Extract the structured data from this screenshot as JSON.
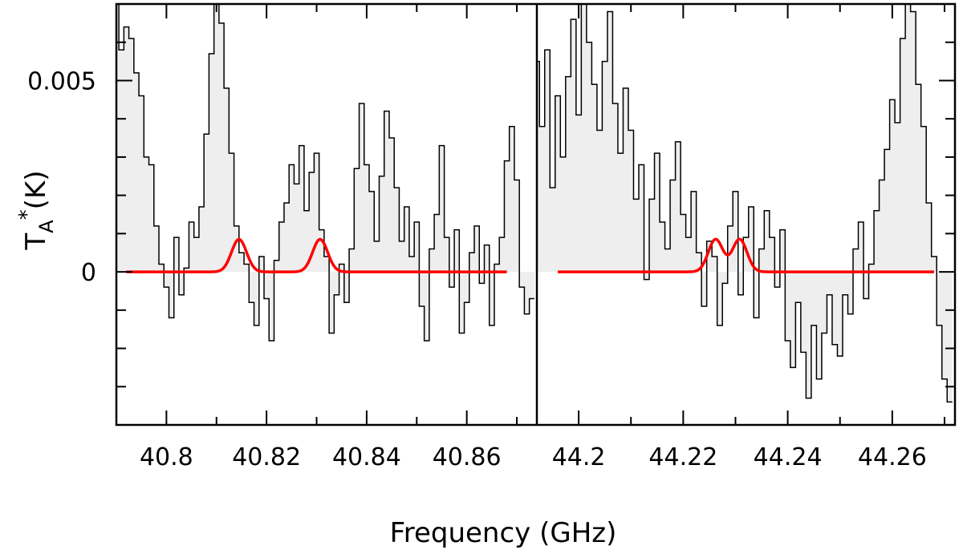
{
  "chart_data": [
    {
      "type": "line",
      "panel": "left",
      "xlabel": "Frequency (GHz)",
      "ylabel": "T_A*(K)",
      "xlim": [
        40.79,
        40.874
      ],
      "ylim": [
        -0.004,
        0.007
      ],
      "x_ticks": [
        40.8,
        40.82,
        40.84,
        40.86
      ],
      "x_tick_labels": [
        "40.8",
        "40.82",
        "40.84",
        "40.86"
      ],
      "y_ticks": [
        0,
        0.005
      ],
      "y_tick_labels": [
        "0",
        "0.005"
      ],
      "series": [
        {
          "style": "histogram-step",
          "color": "#000000",
          "fill": "#eeeeee",
          "x": [
            40.79,
            40.791,
            40.792,
            40.793,
            40.794,
            40.795,
            40.796,
            40.797,
            40.798,
            40.799,
            40.8,
            40.801,
            40.802,
            40.803,
            40.804,
            40.805,
            40.806,
            40.807,
            40.808,
            40.809,
            40.81,
            40.811,
            40.812,
            40.813,
            40.814,
            40.815,
            40.816,
            40.817,
            40.818,
            40.819,
            40.82,
            40.821,
            40.822,
            40.823,
            40.824,
            40.825,
            40.826,
            40.827,
            40.828,
            40.829,
            40.83,
            40.831,
            40.832,
            40.833,
            40.834,
            40.835,
            40.836,
            40.837,
            40.838,
            40.839,
            40.84,
            40.841,
            40.842,
            40.843,
            40.844,
            40.845,
            40.846,
            40.847,
            40.848,
            40.849,
            40.85,
            40.851,
            40.852,
            40.853,
            40.854,
            40.855,
            40.856,
            40.857,
            40.858,
            40.859,
            40.86,
            40.861,
            40.862,
            40.863,
            40.864,
            40.865,
            40.866,
            40.867,
            40.868,
            40.869,
            40.87,
            40.871,
            40.872,
            40.873
          ],
          "y": [
            0.0072,
            0.0058,
            0.0064,
            0.0061,
            0.0052,
            0.0046,
            0.003,
            0.0028,
            0.0012,
            0.0002,
            -0.0004,
            -0.0012,
            0.0009,
            -0.0006,
            0.0001,
            0.0013,
            0.0009,
            0.0017,
            0.0036,
            0.0057,
            0.007,
            0.0065,
            0.0048,
            0.0031,
            0.0012,
            0.0005,
            0.0002,
            -0.0008,
            -0.0014,
            0.0004,
            -0.0007,
            -0.0018,
            0.0003,
            0.0013,
            0.0018,
            0.0028,
            0.0023,
            0.0033,
            0.0016,
            0.0026,
            0.0031,
            0.0011,
            0.0004,
            -0.0016,
            -0.0006,
            0.0002,
            -0.0008,
            0.0006,
            0.0027,
            0.0044,
            0.0028,
            0.0021,
            0.0008,
            0.0025,
            0.0042,
            0.0035,
            0.0022,
            0.0008,
            0.0017,
            0.0004,
            0.0013,
            -0.0009,
            -0.0018,
            0.0006,
            0.0015,
            0.0033,
            0.0009,
            -0.0004,
            0.0011,
            -0.0016,
            -0.0008,
            0.0005,
            0.0012,
            -0.0003,
            0.0007,
            -0.0014,
            0.0002,
            0.0009,
            0.0029,
            0.0038,
            0.0024,
            -0.0004,
            -0.0011,
            -0.0007
          ]
        },
        {
          "style": "model-line",
          "color": "#ff0000",
          "baseline": 0,
          "x_start": 40.792,
          "x_end": 40.868,
          "peaks": [
            {
              "center": 40.8145,
              "amplitude": 0.00085,
              "sigma": 0.0015
            },
            {
              "center": 40.8307,
              "amplitude": 0.00085,
              "sigma": 0.0015
            }
          ]
        }
      ]
    },
    {
      "type": "line",
      "panel": "right",
      "xlabel": "Frequency (GHz)",
      "ylabel": "T_A*(K)",
      "xlim": [
        44.192,
        44.272
      ],
      "ylim": [
        -0.004,
        0.007
      ],
      "x_ticks": [
        44.2,
        44.22,
        44.24,
        44.26
      ],
      "x_tick_labels": [
        "44.2",
        "44.22",
        "44.24",
        "44.26"
      ],
      "y_ticks": [
        0,
        0.005
      ],
      "y_tick_labels": [
        "0",
        "0.005"
      ],
      "series": [
        {
          "style": "histogram-step",
          "color": "#000000",
          "fill": "#eeeeee",
          "x": [
            44.192,
            44.193,
            44.194,
            44.195,
            44.196,
            44.197,
            44.198,
            44.199,
            44.2,
            44.201,
            44.202,
            44.203,
            44.204,
            44.205,
            44.206,
            44.207,
            44.208,
            44.209,
            44.21,
            44.211,
            44.212,
            44.213,
            44.214,
            44.215,
            44.216,
            44.217,
            44.218,
            44.219,
            44.22,
            44.221,
            44.222,
            44.223,
            44.224,
            44.225,
            44.226,
            44.227,
            44.228,
            44.229,
            44.23,
            44.231,
            44.232,
            44.233,
            44.234,
            44.235,
            44.236,
            44.237,
            44.238,
            44.239,
            44.24,
            44.241,
            44.242,
            44.243,
            44.244,
            44.245,
            44.246,
            44.247,
            44.248,
            44.249,
            44.25,
            44.251,
            44.252,
            44.253,
            44.254,
            44.255,
            44.256,
            44.257,
            44.258,
            44.259,
            44.26,
            44.261,
            44.262,
            44.263,
            44.264,
            44.265,
            44.266,
            44.267,
            44.268,
            44.269,
            44.27,
            44.271
          ],
          "y": [
            0.0055,
            0.0038,
            0.0058,
            0.0022,
            0.0046,
            0.003,
            0.0051,
            0.0066,
            0.0041,
            0.0072,
            0.006,
            0.0049,
            0.0037,
            0.0055,
            0.0068,
            0.0044,
            0.0031,
            0.0048,
            0.0037,
            0.0019,
            0.0028,
            -0.0002,
            0.0019,
            0.0031,
            0.0013,
            0.0006,
            0.0024,
            0.0034,
            0.0015,
            0.0009,
            0.0021,
            0.0005,
            -0.0009,
            0.0008,
            0.0004,
            -0.0014,
            -0.0003,
            0.0012,
            0.0021,
            -0.0006,
            0.0009,
            0.0017,
            -0.0012,
            0.0006,
            0.0016,
            0.0009,
            -0.0004,
            0.0011,
            -0.0018,
            -0.0025,
            -0.0008,
            -0.0021,
            -0.0033,
            -0.0014,
            -0.0028,
            -0.0016,
            -0.0006,
            -0.0019,
            -0.0022,
            -0.0006,
            -0.0011,
            0.0006,
            0.0013,
            -0.0007,
            0.0002,
            0.0016,
            0.0024,
            0.0032,
            0.0045,
            0.0039,
            0.0061,
            0.0072,
            0.0068,
            0.0049,
            0.0038,
            0.0018,
            0.0004,
            -0.0014,
            -0.0028,
            -0.0034
          ]
        },
        {
          "style": "model-line",
          "color": "#ff0000",
          "baseline": 0,
          "x_start": 44.196,
          "x_end": 44.268,
          "peaks": [
            {
              "center": 44.2262,
              "amplitude": 0.00085,
              "sigma": 0.0014
            },
            {
              "center": 44.2308,
              "amplitude": 0.00085,
              "sigma": 0.0014
            }
          ]
        }
      ]
    }
  ],
  "axes": {
    "xlabel": "Frequency (GHz)",
    "ylabel_main": "T",
    "ylabel_sub": "A",
    "ylabel_sup": "*",
    "ylabel_unit": "(K)"
  }
}
